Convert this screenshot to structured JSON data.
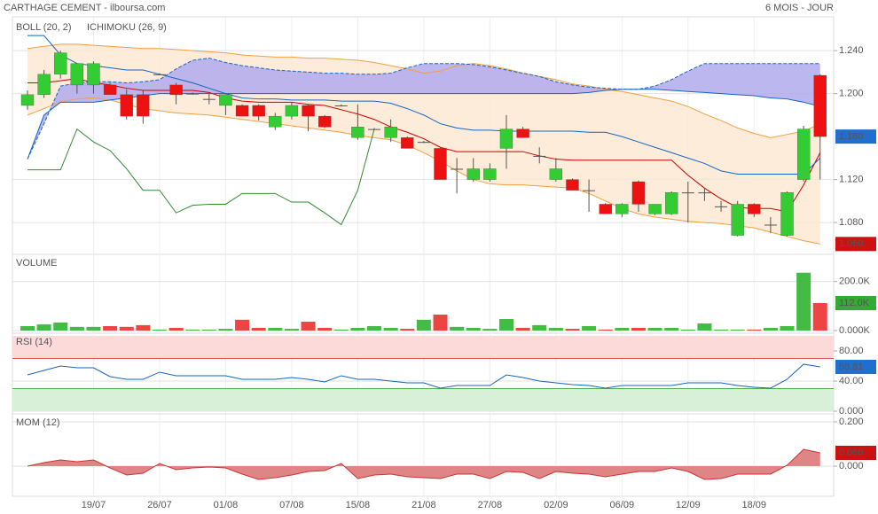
{
  "header": {
    "title": "CARTHAGE CEMENT - ilboursa.com",
    "period": "6 MOIS - JOUR"
  },
  "chart_data": [
    {
      "type": "candlestick",
      "categories": [
        null,
        null,
        null,
        null,
        "19/07",
        null,
        null,
        null,
        "26/07",
        null,
        null,
        null,
        "01/08",
        null,
        null,
        null,
        "07/08",
        null,
        null,
        null,
        "15/08",
        null,
        null,
        null,
        "21/08",
        null,
        null,
        null,
        "27/08",
        null,
        null,
        null,
        "02/09",
        null,
        null,
        null,
        "06/09",
        null,
        null,
        null,
        "12/09",
        null,
        null,
        null,
        "18/09",
        null,
        null,
        null,
        null
      ],
      "open": [
        1.189,
        1.199,
        1.218,
        1.208,
        1.208,
        1.208,
        1.199,
        1.199,
        1.218,
        1.208,
        1.2,
        1.195,
        1.189,
        1.189,
        1.189,
        1.169,
        1.179,
        1.189,
        1.179,
        1.189,
        1.159,
        1.167,
        1.159,
        1.159,
        1.155,
        1.149,
        1.13,
        1.12,
        1.12,
        1.149,
        1.167,
        1.142,
        1.12,
        1.12,
        1.11,
        1.097,
        1.088,
        1.118,
        1.088,
        1.088,
        1.108,
        1.108,
        1.095,
        1.068,
        1.097,
        1.078,
        1.068,
        1.12,
        1.217
      ],
      "high": [
        1.203,
        1.222,
        1.24,
        1.228,
        1.23,
        1.21,
        1.204,
        1.203,
        1.219,
        1.21,
        1.201,
        1.2,
        1.199,
        1.19,
        1.19,
        1.182,
        1.192,
        1.19,
        1.18,
        1.19,
        1.19,
        1.168,
        1.176,
        1.16,
        1.156,
        1.15,
        1.14,
        1.14,
        1.135,
        1.18,
        1.169,
        1.15,
        1.14,
        1.121,
        1.12,
        1.098,
        1.098,
        1.119,
        1.097,
        1.109,
        1.118,
        1.112,
        1.1,
        1.1,
        1.098,
        1.085,
        1.109,
        1.17,
        1.218
      ],
      "low": [
        1.185,
        1.196,
        1.214,
        1.2,
        1.2,
        1.199,
        1.176,
        1.172,
        1.217,
        1.19,
        1.199,
        1.19,
        1.18,
        1.179,
        1.175,
        1.166,
        1.176,
        1.165,
        1.168,
        1.188,
        1.157,
        1.166,
        1.155,
        1.149,
        1.154,
        1.12,
        1.107,
        1.118,
        1.118,
        1.13,
        1.159,
        1.135,
        1.118,
        1.11,
        1.09,
        1.088,
        1.085,
        1.09,
        1.087,
        1.087,
        1.08,
        1.1,
        1.09,
        1.067,
        1.085,
        1.07,
        1.067,
        1.118,
        1.12
      ],
      "close": [
        1.199,
        1.218,
        1.238,
        1.228,
        1.228,
        1.199,
        1.179,
        1.179,
        1.218,
        1.199,
        1.2,
        1.195,
        1.199,
        1.179,
        1.179,
        1.179,
        1.189,
        1.179,
        1.169,
        1.189,
        1.169,
        1.167,
        1.169,
        1.149,
        1.155,
        1.12,
        1.13,
        1.13,
        1.13,
        1.167,
        1.159,
        1.142,
        1.13,
        1.11,
        1.11,
        1.088,
        1.097,
        1.097,
        1.097,
        1.108,
        1.108,
        1.108,
        1.095,
        1.097,
        1.088,
        1.078,
        1.108,
        1.167,
        1.16
      ],
      "up_color": "#33cc33",
      "down_color": "#ee1111",
      "indicators": [
        {
          "name": "BOLL (20, 2)",
          "color": "#f0a040",
          "fill": "#fde9d2",
          "middle_color": "#cc0000",
          "upper": [
            1.242,
            1.244,
            1.246,
            1.246,
            1.245,
            1.244,
            1.243,
            1.242,
            1.242,
            1.241,
            1.24,
            1.239,
            1.238,
            1.236,
            1.235,
            1.234,
            1.234,
            1.233,
            1.233,
            1.232,
            1.231,
            1.229,
            1.226,
            1.223,
            1.219,
            1.221,
            1.226,
            1.228,
            1.226,
            1.223,
            1.219,
            1.216,
            1.213,
            1.209,
            1.207,
            1.204,
            1.202,
            1.199,
            1.196,
            1.193,
            1.188,
            1.181,
            1.175,
            1.168,
            1.163,
            1.159,
            1.162,
            1.165,
            1.172
          ],
          "middle": [
            1.21,
            1.21,
            1.212,
            1.214,
            1.21,
            1.208,
            1.205,
            1.203,
            1.203,
            1.203,
            1.203,
            1.201,
            1.196,
            1.193,
            1.192,
            1.192,
            1.192,
            1.19,
            1.189,
            1.185,
            1.181,
            1.176,
            1.169,
            1.164,
            1.158,
            1.15,
            1.146,
            1.146,
            1.146,
            1.146,
            1.146,
            1.142,
            1.139,
            1.138,
            1.138,
            1.138,
            1.138,
            1.138,
            1.138,
            1.138,
            1.124,
            1.112,
            1.102,
            1.094,
            1.093,
            1.093,
            1.09,
            1.115,
            1.145
          ],
          "lower": [
            1.18,
            1.186,
            1.192,
            1.195,
            1.196,
            1.194,
            1.19,
            1.186,
            1.184,
            1.182,
            1.181,
            1.18,
            1.178,
            1.176,
            1.174,
            1.172,
            1.17,
            1.168,
            1.166,
            1.164,
            1.161,
            1.159,
            1.157,
            1.152,
            1.145,
            1.137,
            1.128,
            1.12,
            1.116,
            1.115,
            1.115,
            1.114,
            1.113,
            1.112,
            1.107,
            1.1,
            1.093,
            1.088,
            1.085,
            1.083,
            1.081,
            1.08,
            1.079,
            1.077,
            1.075,
            1.071,
            1.067,
            1.063,
            1.06
          ]
        },
        {
          "name": "ICHIMOKU (26, 9)",
          "color": "#1565c0",
          "fill": "#b0aaec",
          "lagging_color": "#2e8b2e",
          "base": [
            1.254,
            1.254,
            1.236,
            1.228,
            1.226,
            1.224,
            1.222,
            1.222,
            1.218,
            1.214,
            1.21,
            1.205,
            1.2,
            1.196,
            1.195,
            1.195,
            1.194,
            1.194,
            1.194,
            1.193,
            1.193,
            1.193,
            1.191,
            1.186,
            1.18,
            1.172,
            1.168,
            1.166,
            1.166,
            1.165,
            1.165,
            1.165,
            1.165,
            1.165,
            1.164,
            1.164,
            1.16,
            1.155,
            1.15,
            1.145,
            1.14,
            1.135,
            1.128,
            1.125,
            1.125,
            1.125,
            1.125,
            1.125,
            1.14
          ],
          "span_a": [
            1.139,
            1.172,
            1.207,
            1.21,
            1.211,
            1.211,
            1.21,
            1.211,
            1.213,
            1.223,
            1.231,
            1.233,
            1.229,
            1.226,
            1.224,
            1.222,
            1.221,
            1.22,
            1.219,
            1.219,
            1.218,
            1.218,
            1.219,
            1.224,
            1.228,
            1.228,
            1.228,
            1.227,
            1.225,
            1.222,
            1.219,
            1.216,
            1.211,
            1.208,
            1.206,
            1.205,
            1.204,
            1.204,
            1.207,
            1.213,
            1.221,
            1.228,
            1.228,
            1.228,
            1.228,
            1.228,
            1.228,
            1.228,
            1.228
          ],
          "span_b": [
            1.139,
            1.18,
            1.192,
            1.192,
            1.192,
            1.194,
            1.196,
            1.198,
            1.2,
            1.2,
            1.2,
            1.2,
            1.2,
            1.2,
            1.2,
            1.2,
            1.2,
            1.2,
            1.2,
            1.2,
            1.2,
            1.2,
            1.2,
            1.2,
            1.2,
            1.2,
            1.2,
            1.2,
            1.2,
            1.2,
            1.2,
            1.2,
            1.2,
            1.2,
            1.201,
            1.203,
            1.204,
            1.204,
            1.204,
            1.203,
            1.202,
            1.201,
            1.2,
            1.199,
            1.198,
            1.196,
            1.195,
            1.192,
            1.188
          ],
          "lagging": [
            1.129,
            1.129,
            1.129,
            1.167,
            1.155,
            1.147,
            1.13,
            1.11,
            1.11,
            1.089,
            1.096,
            1.097,
            1.097,
            1.107,
            1.107,
            1.107,
            1.099,
            1.099,
            1.089,
            1.078,
            1.11,
            1.167,
            null,
            null,
            null,
            null,
            null,
            null,
            null,
            null,
            null,
            null,
            null,
            null,
            null,
            null,
            null,
            null,
            null,
            null,
            null,
            null,
            null,
            null,
            null,
            null,
            null,
            null,
            null
          ]
        }
      ],
      "ylim": [
        1.052,
        1.269
      ],
      "yticks": [
        {
          "value": 1.08,
          "label": "1.080"
        },
        {
          "value": 1.12,
          "label": "1.120"
        },
        {
          "value": 1.2,
          "label": "1.200"
        },
        {
          "value": 1.24,
          "label": "1.240"
        }
      ],
      "last_labels": [
        {
          "value": 1.16,
          "label": "1.160",
          "color": "#1e6fd0"
        },
        {
          "value": 1.06,
          "label": "1.060",
          "color": "#cc1111"
        }
      ]
    },
    {
      "type": "bar",
      "title": "VOLUME",
      "title_color": "#33aa33",
      "values": [
        18000,
        25000,
        33000,
        15000,
        15000,
        18000,
        15000,
        22000,
        4000,
        11000,
        4000,
        4000,
        7000,
        44000,
        11000,
        11000,
        7000,
        36000,
        11000,
        4000,
        11000,
        18000,
        11000,
        7000,
        44000,
        65000,
        15000,
        11000,
        7000,
        47000,
        11000,
        22000,
        11000,
        7000,
        18000,
        4000,
        11000,
        11000,
        11000,
        11000,
        4000,
        29000,
        4000,
        4000,
        4000,
        11000,
        18000,
        236000,
        112000
      ],
      "ylim": [
        0,
        300000
      ],
      "yticks": [
        {
          "value": 0,
          "label": "0.000K"
        },
        {
          "value": 200000,
          "label": "200.0K"
        }
      ],
      "last_labels": [
        {
          "value": 112000,
          "label": "112.0K",
          "color": "#33aa33"
        }
      ]
    },
    {
      "type": "line",
      "title": "RSI (14)",
      "title_color": "#1565c0",
      "color": "#1565c0",
      "values": [
        48.2,
        54.1,
        60.0,
        57.6,
        57.6,
        45.9,
        42.4,
        42.4,
        51.8,
        47.1,
        47.1,
        47.1,
        47.1,
        42.4,
        42.4,
        42.4,
        44.7,
        42.4,
        38.8,
        47.1,
        42.4,
        42.4,
        40.0,
        37.6,
        37.6,
        30.6,
        34.1,
        34.1,
        34.1,
        48.2,
        44.7,
        40.0,
        37.6,
        35.3,
        34.1,
        30.6,
        34.1,
        34.1,
        34.1,
        34.1,
        37.6,
        37.6,
        37.6,
        34.1,
        31.8,
        30.6,
        42.4,
        62.4,
        58.81
      ],
      "upper_band": 70,
      "lower_band": 30,
      "ylim": [
        0,
        100
      ],
      "yticks": [
        {
          "value": 0,
          "label": "0.000"
        },
        {
          "value": 40,
          "label": "40.00"
        },
        {
          "value": 80,
          "label": "80.00"
        }
      ],
      "last_labels": [
        {
          "value": 58.81,
          "label": "58.81",
          "color": "#1e6fd0"
        }
      ]
    },
    {
      "type": "area",
      "title": "MOM (12)",
      "title_color": "#cc2222",
      "color": "#cc3333",
      "fill": "#e08585",
      "values": [
        0,
        0.016,
        0.028,
        0.02,
        0.028,
        -0.008,
        -0.04,
        -0.032,
        0.012,
        -0.016,
        -0.008,
        -0.004,
        -0.008,
        -0.036,
        -0.06,
        -0.052,
        -0.04,
        -0.024,
        -0.02,
        0.012,
        -0.056,
        -0.04,
        -0.036,
        -0.048,
        -0.052,
        -0.056,
        -0.036,
        -0.036,
        -0.056,
        -0.024,
        -0.028,
        -0.056,
        -0.024,
        -0.032,
        -0.036,
        -0.048,
        -0.036,
        -0.024,
        -0.024,
        -0.008,
        -0.024,
        -0.06,
        -0.056,
        -0.036,
        -0.036,
        -0.036,
        0.004,
        0.076,
        0.06
      ],
      "ylim": [
        -0.124,
        0.224
      ],
      "yticks": [
        {
          "value": 0,
          "label": "0.000"
        },
        {
          "value": 0.2,
          "label": "0.200"
        }
      ],
      "last_labels": [
        {
          "value": 0.06,
          "label": "0.060",
          "color": "#cc1111"
        }
      ]
    }
  ]
}
